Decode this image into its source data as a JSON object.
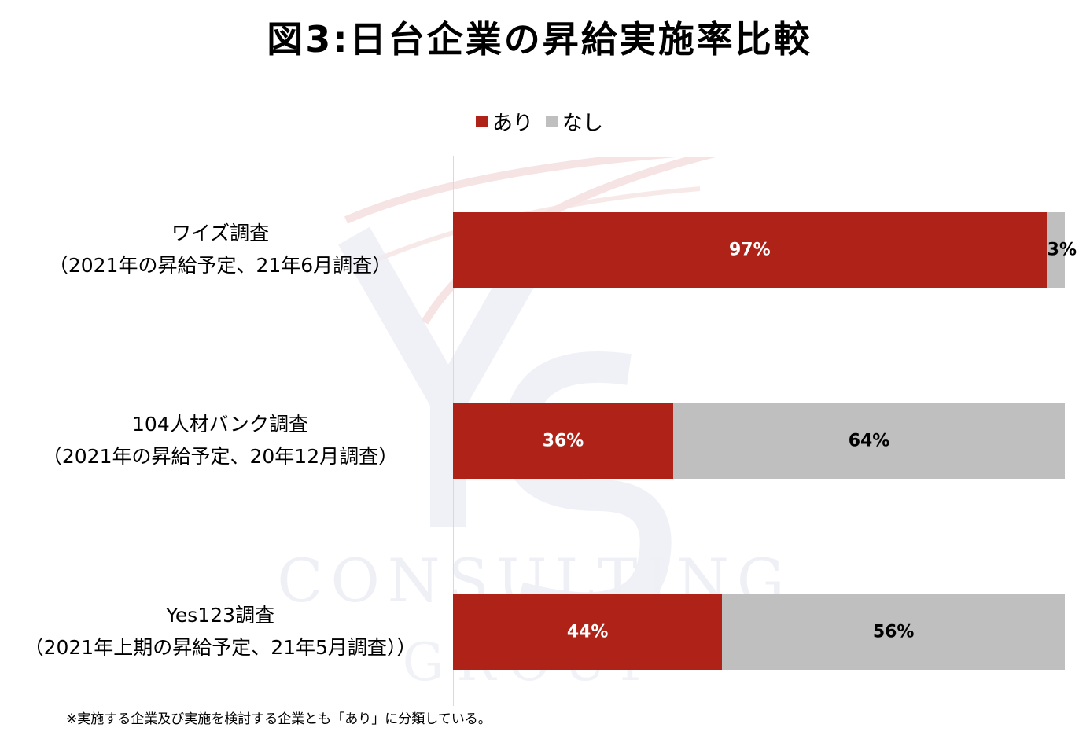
{
  "title": "図3:日台企業の昇給実施率比較",
  "footnote": "※実施する企業及び実施を検討する企業とも「あり」に分類している。",
  "colors": {
    "ari": "#ae2218",
    "nashi": "#bfbfbf"
  },
  "chart_data": {
    "type": "bar",
    "orientation": "horizontal",
    "stacked": true,
    "percent": true,
    "categories": [
      {
        "line1": "ワイズ調査",
        "line2": "（2021年の昇給予定、21年6月調査）"
      },
      {
        "line1": "104人材バンク調査",
        "line2": "（2021年の昇給予定、20年12月調査）"
      },
      {
        "line1": "Yes123調査",
        "line2": "（2021年上期の昇給予定、21年5月調査））"
      }
    ],
    "series": [
      {
        "name": "あり",
        "values": [
          97,
          36,
          44
        ],
        "labels": [
          "97%",
          "36%",
          "44%"
        ]
      },
      {
        "name": "なし",
        "values": [
          3,
          64,
          56
        ],
        "labels": [
          "3%",
          "64%",
          "56%"
        ]
      }
    ],
    "xlim": [
      0,
      100
    ],
    "legend": "top",
    "grid": false
  }
}
